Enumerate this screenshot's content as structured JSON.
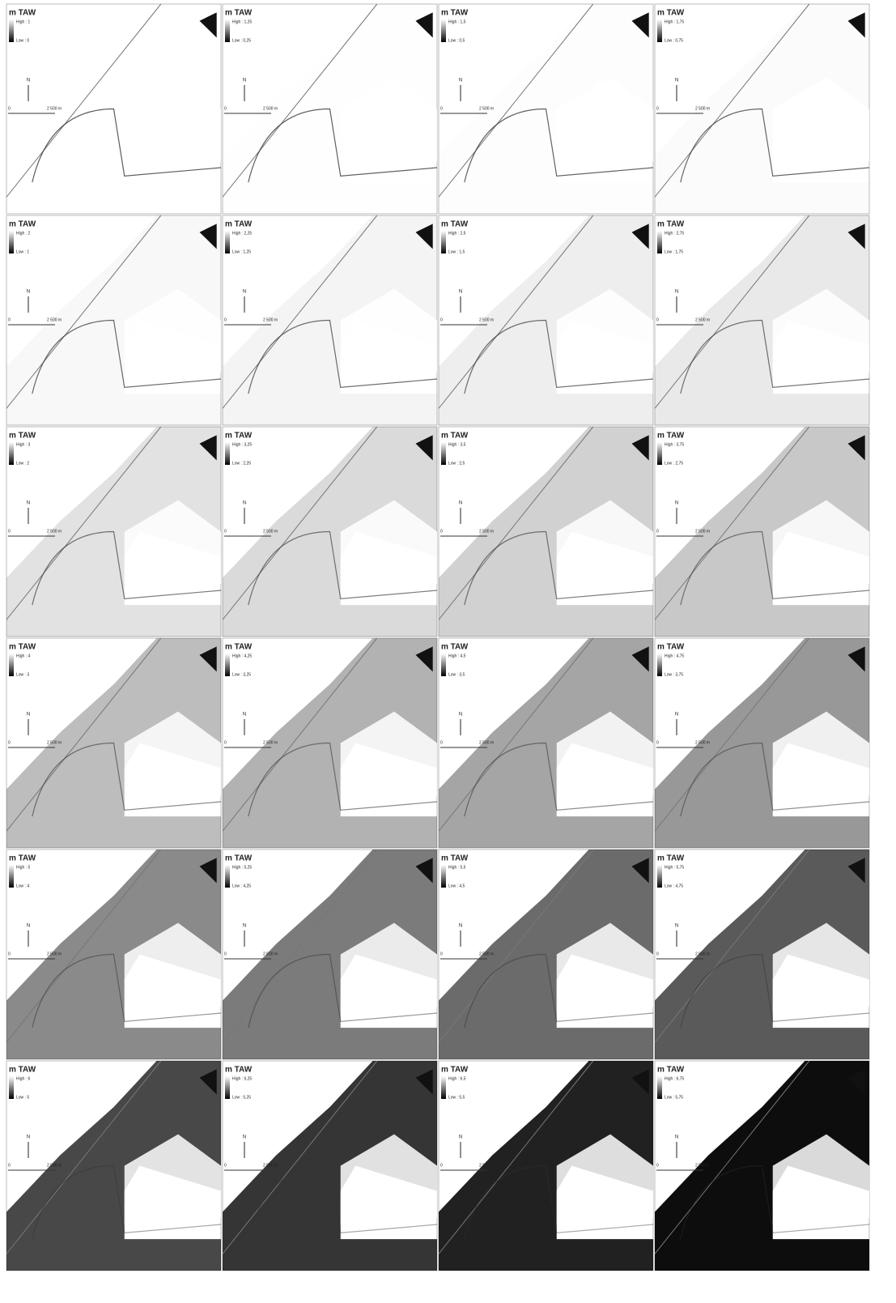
{
  "panels": [
    {
      "title": "m TAW",
      "high": "High : 1",
      "low": "Low : 0",
      "north": "N",
      "scale_start": "0",
      "scale_end": "2 500 m"
    },
    {
      "title": "m TAW",
      "high": "High : 1,25",
      "low": "Low : 0,25",
      "north": "N",
      "scale_start": "0",
      "scale_end": "2 500 m"
    },
    {
      "title": "m TAW",
      "high": "High : 1,5",
      "low": "Low : 0,5",
      "north": "N",
      "scale_start": "0",
      "scale_end": "2 500 m"
    },
    {
      "title": "m TAW",
      "high": "High : 1,75",
      "low": "Low : 0,75",
      "north": "N",
      "scale_start": "0",
      "scale_end": "2 500 m"
    },
    {
      "title": "m TAW",
      "high": "High : 2",
      "low": "Low : 1",
      "north": "N",
      "scale_start": "0",
      "scale_end": "2 500 m"
    },
    {
      "title": "m TAW",
      "high": "High : 2,25",
      "low": "Low : 1,25",
      "north": "N",
      "scale_start": "0",
      "scale_end": "2 500 m"
    },
    {
      "title": "m TAW",
      "high": "High : 2,5",
      "low": "Low : 1,5",
      "north": "N",
      "scale_start": "0",
      "scale_end": "2 500 m"
    },
    {
      "title": "m TAW",
      "high": "High : 2,75",
      "low": "Low : 1,75",
      "north": "N",
      "scale_start": "0",
      "scale_end": "2 500 m"
    },
    {
      "title": "m TAW",
      "high": "High : 3",
      "low": "Low : 2",
      "north": "N",
      "scale_start": "0",
      "scale_end": "2 500 m"
    },
    {
      "title": "m TAW",
      "high": "High : 3,25",
      "low": "Low : 2,25",
      "north": "N",
      "scale_start": "0",
      "scale_end": "2 500 m"
    },
    {
      "title": "m TAW",
      "high": "High : 3,5",
      "low": "Low : 2,5",
      "north": "N",
      "scale_start": "0",
      "scale_end": "2 500 m"
    },
    {
      "title": "m TAW",
      "high": "High : 3,75",
      "low": "Low : 2,75",
      "north": "N",
      "scale_start": "0",
      "scale_end": "2 500 m"
    },
    {
      "title": "m TAW",
      "high": "High : 4",
      "low": "Low : 3",
      "north": "N",
      "scale_start": "0",
      "scale_end": "2 500 m"
    },
    {
      "title": "m TAW",
      "high": "High : 4,25",
      "low": "Low : 3,25",
      "north": "N",
      "scale_start": "0",
      "scale_end": "2 500 m"
    },
    {
      "title": "m TAW",
      "high": "High : 4,5",
      "low": "Low : 3,5",
      "north": "N",
      "scale_start": "0",
      "scale_end": "2 500 m"
    },
    {
      "title": "m TAW",
      "high": "High : 4,75",
      "low": "Low : 3,75",
      "north": "N",
      "scale_start": "0",
      "scale_end": "2 500 m"
    },
    {
      "title": "m TAW",
      "high": "High : 5",
      "low": "Low : 4",
      "north": "N",
      "scale_start": "0",
      "scale_end": "2 500 m"
    },
    {
      "title": "m TAW",
      "high": "High : 5,25",
      "low": "Low : 4,25",
      "north": "N",
      "scale_start": "0",
      "scale_end": "2 500 m"
    },
    {
      "title": "m TAW",
      "high": "High : 5,5",
      "low": "Low : 4,5",
      "north": "N",
      "scale_start": "0",
      "scale_end": "2 500 m"
    },
    {
      "title": "m TAW",
      "high": "High : 5,75",
      "low": "Low : 4,75",
      "north": "N",
      "scale_start": "0",
      "scale_end": "2 500 m"
    },
    {
      "title": "m TAW",
      "high": "High : 6",
      "low": "Low : 5",
      "north": "N",
      "scale_start": "0",
      "scale_end": "2 500 m"
    },
    {
      "title": "m TAW",
      "high": "High : 6,25",
      "low": "Low : 5,25",
      "north": "N",
      "scale_start": "0",
      "scale_end": "2 500 m"
    },
    {
      "title": "m TAW",
      "high": "High : 6,5",
      "low": "Low : 5,5",
      "north": "N",
      "scale_start": "0",
      "scale_end": "2 500 m"
    },
    {
      "title": "m TAW",
      "high": "High : 6,75",
      "low": "Low : 5,75",
      "north": "N",
      "scale_start": "0",
      "scale_end": "2 500 m"
    }
  ]
}
